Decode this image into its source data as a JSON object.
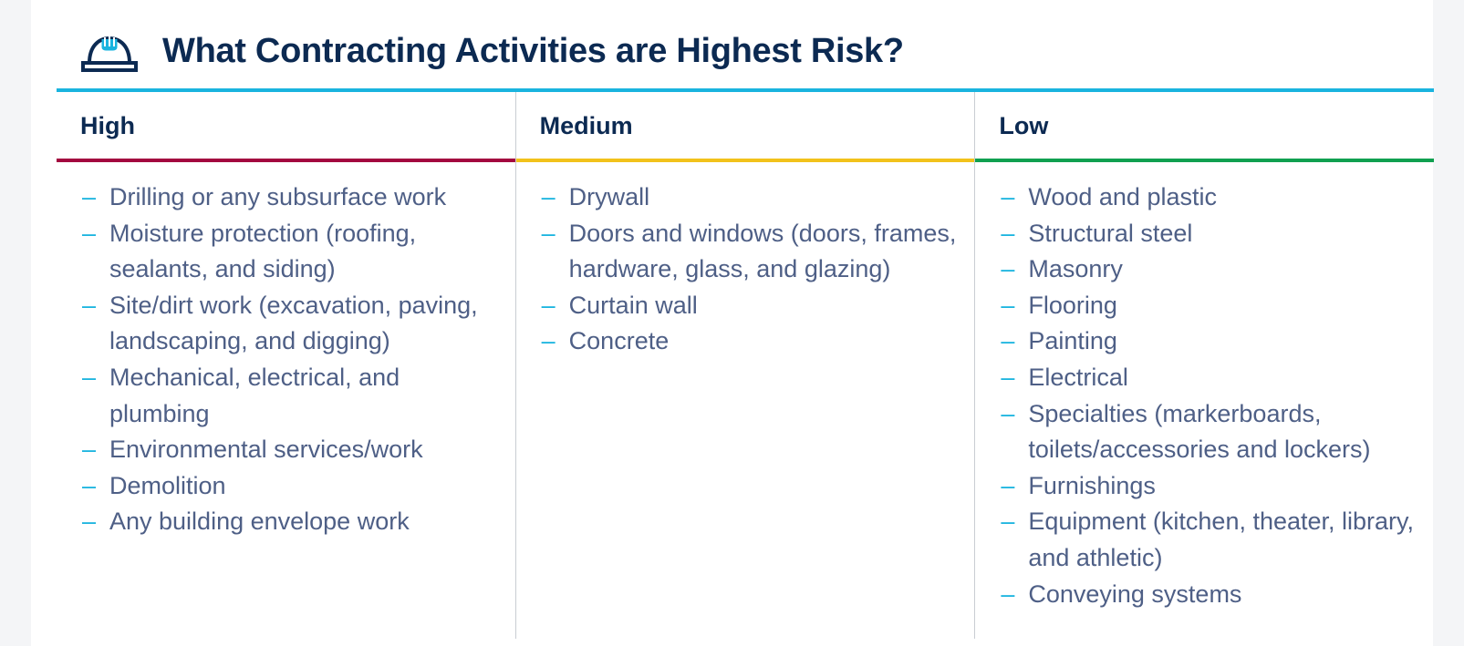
{
  "header": {
    "title": "What Contracting Activities are Highest Risk?",
    "icon": "hard-hat-icon"
  },
  "colors": {
    "title": "#0c2a52",
    "accent_rule": "#1ab4df",
    "high": "#a3083f",
    "medium": "#f2c21b",
    "low": "#10a050",
    "body_text": "#4e5f86"
  },
  "columns": [
    {
      "label": "High",
      "items": [
        "Drilling or any subsurface work",
        "Moisture protection (roofing, sealants, and siding)",
        "Site/dirt work (excavation, paving, landscaping, and digging)",
        "Mechanical, electrical, and plumbing",
        "Environmental services/work",
        "Demolition",
        "Any building envelope work"
      ]
    },
    {
      "label": "Medium",
      "items": [
        "Drywall",
        "Doors and windows (doors, frames, hardware, glass, and glazing)",
        "Curtain wall",
        "Concrete"
      ]
    },
    {
      "label": "Low",
      "items": [
        "Wood and plastic",
        "Structural steel",
        "Masonry",
        "Flooring",
        "Painting",
        "Electrical",
        "Specialties (markerboards, toilets/accessories and lockers)",
        "Furnishings",
        "Equipment (kitchen, theater, library, and athletic)",
        "Conveying systems"
      ]
    }
  ],
  "list_marker": "–"
}
